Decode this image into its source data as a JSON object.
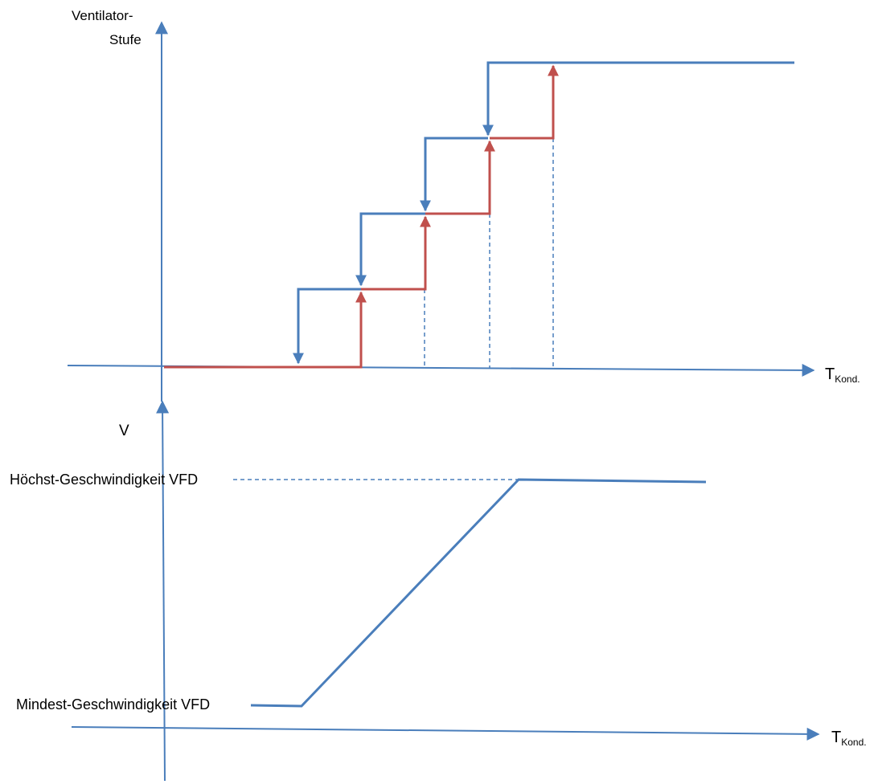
{
  "colors": {
    "axis": "#4a7ebb",
    "falling_step": "#4a7ebb",
    "rising_step": "#c0504d",
    "guide": "#4a7ebb"
  },
  "top_chart": {
    "y_axis_label_line1": "Ventilator-",
    "y_axis_label_line2": "Stufe",
    "x_axis_label_main": "T",
    "x_axis_label_sub": "Kond."
  },
  "bottom_chart": {
    "y_axis_label": "V",
    "max_speed_label": "Höchst-Geschwindigkeit VFD",
    "min_speed_label": "Mindest-Geschwindigkeit VFD",
    "x_axis_label_main": "T",
    "x_axis_label_sub": "Kond."
  }
}
